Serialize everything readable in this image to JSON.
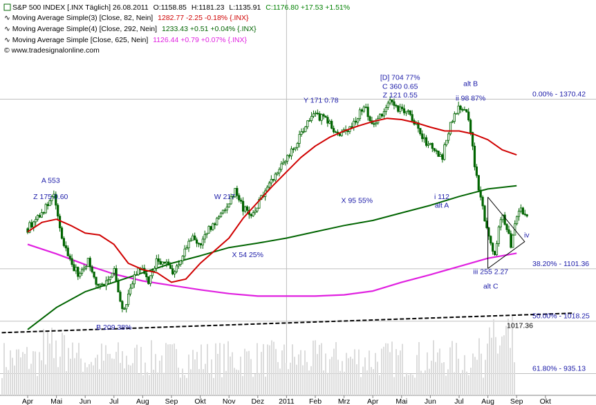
{
  "header": {
    "main": {
      "name": "S&P 500 INDEX [.INX Täglich] 26.08.2011",
      "open": "O:1158.85",
      "high": "H:1181.23",
      "low": "L:1135.91",
      "close": "C:1176.80 +17.53 +1.51%"
    },
    "indicators": [
      {
        "label": "Moving Average Simple(3) [Close, 82, Nein]",
        "value": "1282.77 -2.25 -0.18% {.INX}",
        "color": "#d00000"
      },
      {
        "label": "Moving Average Simple(4) [Close, 292, Nein]",
        "value": "1233.43 +0.51 +0.04% {.INX}",
        "color": "#006400"
      },
      {
        "label": "Moving Average Simple [Close, 625, Nein]",
        "value": "1126.44 +0.79 +0.07% {.INX}",
        "color": "#e020e0"
      }
    ],
    "source": "© www.tradesignalonline.com"
  },
  "colors": {
    "price": "#006400",
    "ma82": "#d00000",
    "ma292": "#006400",
    "ma625": "#e020e0",
    "annotation": "#1a1aa8",
    "grid": "#bfbfbf",
    "volume": "#dcdcdc"
  },
  "chart_data": {
    "type": "line",
    "x_ticks": [
      "Apr",
      "Mai",
      "Jun",
      "Jul",
      "Aug",
      "Sep",
      "Okt",
      "Nov",
      "Dez",
      "2011",
      "Feb",
      "Mrz",
      "Apr",
      "Mai",
      "Jun",
      "Jul",
      "Aug",
      "Sep",
      "Okt"
    ],
    "ylim": [
      905,
      1440
    ],
    "series": [
      {
        "key": "price",
        "x": [
          0,
          0.3,
          0.6,
          0.9,
          1.2,
          1.5,
          1.8,
          2.1,
          2.4,
          2.7,
          3.0,
          3.3,
          3.6,
          3.9,
          4.2,
          4.5,
          4.8,
          5.1,
          5.4,
          5.7,
          6.0,
          6.3,
          6.6,
          6.9,
          7.2,
          7.5,
          7.8,
          8.1,
          8.4,
          8.7,
          9.0,
          9.3,
          9.6,
          9.9,
          10.2,
          10.5,
          10.8,
          11.1,
          11.4,
          11.7,
          12.0,
          12.3,
          12.6,
          12.9,
          13.2,
          13.5,
          13.8,
          14.1,
          14.4,
          14.7,
          15.0,
          15.3,
          15.6,
          15.9,
          16.2,
          16.5,
          16.8,
          17.1,
          17.4
        ],
        "values": [
          1165,
          1182,
          1196,
          1218,
          1147,
          1112,
          1090,
          1115,
          1075,
          1080,
          1100,
          1030,
          1075,
          1105,
          1080,
          1115,
          1110,
          1095,
          1125,
          1150,
          1140,
          1163,
          1180,
          1200,
          1225,
          1196,
          1185,
          1212,
          1240,
          1257,
          1278,
          1295,
          1325,
          1343,
          1342,
          1332,
          1310,
          1320,
          1338,
          1360,
          1330,
          1345,
          1365,
          1355,
          1350,
          1328,
          1305,
          1290,
          1275,
          1335,
          1360,
          1345,
          1250,
          1180,
          1120,
          1190,
          1140,
          1200,
          1178
        ]
      },
      {
        "key": "ma82",
        "name": "Moving Average Simple(3) [Close, 82, Nein]",
        "x": [
          0,
          0.5,
          1.0,
          1.5,
          2.0,
          2.5,
          3.0,
          3.5,
          4.0,
          4.5,
          5.0,
          5.5,
          6.0,
          6.5,
          7.0,
          7.5,
          8.0,
          8.5,
          9.0,
          9.5,
          10.0,
          10.5,
          11.0,
          11.5,
          12.0,
          12.5,
          13.0,
          13.5,
          14.0,
          14.5,
          15.0,
          15.5,
          16.0,
          16.5,
          17.0
        ],
        "values": [
          1160,
          1175,
          1180,
          1170,
          1158,
          1155,
          1140,
          1110,
          1100,
          1095,
          1080,
          1085,
          1110,
          1130,
          1150,
          1182,
          1207,
          1232,
          1255,
          1278,
          1296,
          1310,
          1320,
          1328,
          1335,
          1340,
          1338,
          1333,
          1326,
          1320,
          1320,
          1315,
          1306,
          1290,
          1282
        ]
      },
      {
        "key": "ma292",
        "name": "Moving Average Simple(4) [Close, 292, Nein]",
        "x": [
          0,
          1,
          2,
          3,
          4,
          5,
          6,
          7,
          8,
          9,
          10,
          11,
          12,
          13,
          14,
          15,
          16,
          17
        ],
        "values": [
          1005,
          1040,
          1065,
          1080,
          1095,
          1110,
          1122,
          1135,
          1142,
          1150,
          1160,
          1170,
          1178,
          1190,
          1202,
          1216,
          1228,
          1233
        ]
      },
      {
        "key": "ma625",
        "name": "Moving Average Simple [Close, 625, Nein]",
        "x": [
          0,
          1,
          2,
          3,
          4,
          5,
          6,
          7,
          8,
          9,
          10,
          11,
          12,
          13,
          14,
          15,
          16,
          17
        ],
        "values": [
          1140,
          1125,
          1108,
          1093,
          1082,
          1075,
          1068,
          1062,
          1058,
          1058,
          1058,
          1060,
          1066,
          1080,
          1092,
          1105,
          1118,
          1126
        ]
      },
      {
        "key": "trend",
        "x": [
          -0.9,
          19.0
        ],
        "values": [
          1000,
          1031
        ]
      }
    ]
  },
  "annotations": [
    {
      "text": "A 553",
      "x": 0.8,
      "y": 1238
    },
    {
      "text": "Z 175 0.60",
      "x": 0.8,
      "y": 1212
    },
    {
      "text": "B 209 38%",
      "x": 3.0,
      "y": 1005
    },
    {
      "text": "W 217",
      "x": 6.85,
      "y": 1212
    },
    {
      "text": "X 54 25%",
      "x": 7.65,
      "y": 1120
    },
    {
      "text": "Y 171 0.78",
      "x": 10.2,
      "y": 1365
    },
    {
      "text": "X 95 55%",
      "x": 11.45,
      "y": 1206
    },
    {
      "text": "[D] 704 77%",
      "x": 12.95,
      "y": 1401
    },
    {
      "text": "C 360 0.65",
      "x": 12.95,
      "y": 1387
    },
    {
      "text": "Z 121 0.55",
      "x": 12.95,
      "y": 1373
    },
    {
      "text": "alt B",
      "x": 15.4,
      "y": 1391
    },
    {
      "text": "ii 98 87%",
      "x": 15.4,
      "y": 1368
    },
    {
      "text": "i 112",
      "x": 14.4,
      "y": 1212
    },
    {
      "text": "alt A",
      "x": 14.4,
      "y": 1198
    },
    {
      "text": "iv",
      "x": 17.35,
      "y": 1151
    },
    {
      "text": "iii 255 2.27",
      "x": 16.1,
      "y": 1093
    },
    {
      "text": "alt C",
      "x": 16.1,
      "y": 1070
    }
  ],
  "levels": [
    {
      "text": "0.00% - 1370.42",
      "value": 1370.42
    },
    {
      "text": "38.20% - 1101.36",
      "value": 1101.36
    },
    {
      "text": "50.00% - 1018.25",
      "value": 1018.25
    },
    {
      "text": "61.80% - 935.13",
      "value": 935.13
    }
  ],
  "trend_label": {
    "text": "1017.36",
    "value": 1017.36
  }
}
